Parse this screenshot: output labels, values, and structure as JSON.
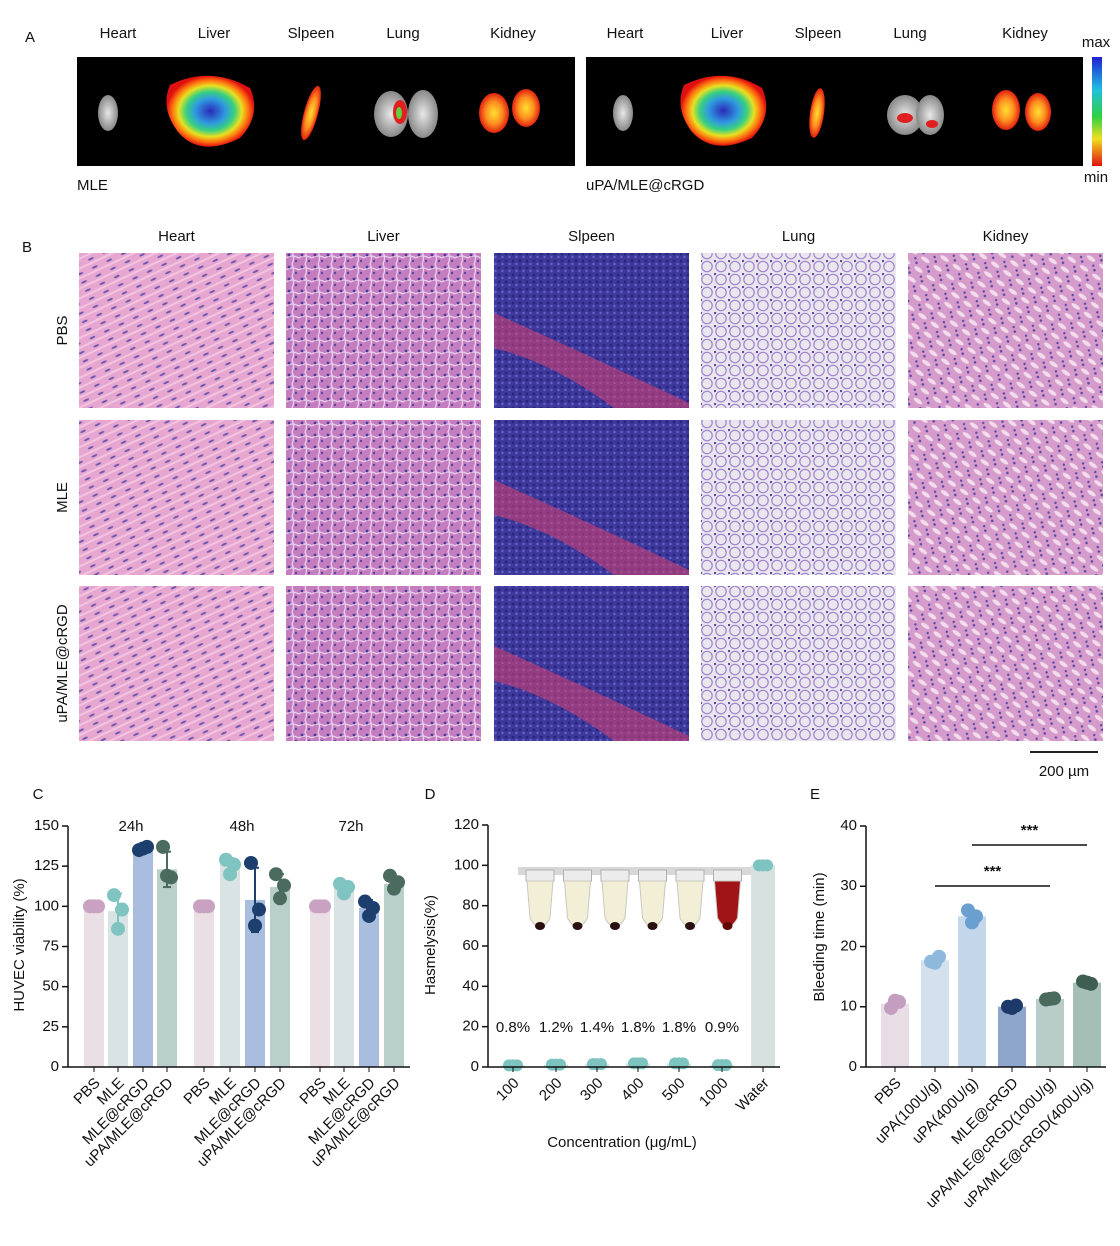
{
  "panel_a": {
    "label": "A",
    "organs": [
      "Heart",
      "Liver",
      "Slpeen",
      "Lung",
      "Kidney"
    ],
    "groups": [
      "MLE",
      "uPA/MLE@cRGD"
    ],
    "scale_max": "max",
    "scale_min": "min"
  },
  "panel_b": {
    "label": "B",
    "columns": [
      "Heart",
      "Liver",
      "Slpeen",
      "Lung",
      "Kidney"
    ],
    "rows": [
      "PBS",
      "MLE",
      "uPA/MLE@cRGD"
    ],
    "scale_bar": "200 µm"
  },
  "chart_data": [
    {
      "type": "grouped_bar",
      "label": "C",
      "ylabel": "HUVEC  viability (%)",
      "categories": [
        "24h",
        "48h",
        "72h"
      ],
      "series": [
        {
          "name": "PBS",
          "color": "#eadfe5",
          "point_color": "#c9a2c2",
          "values": [
            100,
            100,
            100
          ],
          "errors": [
            0,
            0,
            0
          ],
          "points": [
            [
              100,
              100,
              100
            ],
            [
              100,
              100,
              100
            ],
            [
              100,
              100,
              100
            ]
          ]
        },
        {
          "name": "MLE",
          "color": "#d9e3e3",
          "point_color": "#7fc4c0",
          "values": [
            97,
            126,
            112
          ],
          "errors": [
            11,
            4,
            3
          ],
          "points": [
            [
              107,
              98,
              86
            ],
            [
              129,
              126,
              120
            ],
            [
              114,
              112,
              108
            ]
          ]
        },
        {
          "name": "MLE@cRGD",
          "color": "#a9bedf",
          "point_color": "#1d3f6e",
          "values": [
            136,
            104,
            99
          ],
          "errors": [
            1,
            20,
            5
          ],
          "points": [
            [
              135,
              137,
              136
            ],
            [
              127,
              98,
              88
            ],
            [
              103,
              99,
              94
            ]
          ]
        },
        {
          "name": "uPA/MLE@cRGD",
          "color": "#b9cfca",
          "point_color": "#4a6b5e",
          "values": [
            123,
            112,
            114
          ],
          "errors": [
            11,
            8,
            4
          ],
          "points": [
            [
              137,
              118,
              119
            ],
            [
              120,
              113,
              105
            ],
            [
              119,
              115,
              111
            ]
          ]
        }
      ],
      "ylim": [
        0,
        150
      ],
      "yticks": [
        0,
        25,
        50,
        75,
        100,
        125,
        150
      ]
    },
    {
      "type": "bar",
      "label": "D",
      "ylabel": "Hasmelysis(%)",
      "xlabel": "Concentration (μg/mL)",
      "categories": [
        "100",
        "200",
        "300",
        "400",
        "500",
        "1000",
        "Water"
      ],
      "values": [
        0.8,
        1.2,
        1.4,
        1.8,
        1.8,
        0.9,
        100
      ],
      "value_labels": [
        "0.8%",
        "1.2%",
        "1.4%",
        "1.8%",
        "1.8%",
        "0.9%",
        null
      ],
      "points": [
        [
          0.8,
          0.8,
          0.8
        ],
        [
          1.2,
          1.2,
          1.2
        ],
        [
          1.4,
          1.4,
          1.4
        ],
        [
          1.8,
          1.8,
          1.8
        ],
        [
          1.8,
          1.8,
          1.8
        ],
        [
          0.9,
          0.9,
          0.9
        ],
        [
          100,
          100,
          100
        ]
      ],
      "color": "#d6e1e0",
      "point_color": "#7dc3bf",
      "ylim": [
        0,
        120
      ],
      "yticks": [
        0,
        20,
        40,
        60,
        80,
        100,
        120
      ]
    },
    {
      "type": "bar",
      "label": "E",
      "ylabel": "Bleeding time (min)",
      "categories": [
        "PBS",
        "uPA(100U/g)",
        "uPA(400U/g)",
        "MLE@cRGD",
        "uPA/MLE@cRGD(100U/g)",
        "uPA/MLE@cRGD(400U/g)"
      ],
      "values": [
        10.5,
        17.7,
        25.0,
        10.0,
        11.3,
        14.0
      ],
      "points": [
        [
          9.8,
          10.8,
          11
        ],
        [
          17.5,
          18.3,
          17.3
        ],
        [
          26,
          25,
          24
        ],
        [
          10,
          10.2,
          9.8
        ],
        [
          11.2,
          11.4,
          11.3
        ],
        [
          14.2,
          13.8,
          14
        ]
      ],
      "colors": [
        "#e8dde5",
        "#d3e1ef",
        "#c3d6ea",
        "#8ea6cb",
        "#b9cdc8",
        "#a5beb6"
      ],
      "point_colors": [
        "#c49ec0",
        "#8fb8dd",
        "#6b9fcf",
        "#1d3a6b",
        "#4a6a5e",
        "#3f5e52"
      ],
      "comparisons": [
        {
          "label": "***",
          "between": [
            1,
            4
          ]
        },
        {
          "label": "***",
          "between": [
            2,
            5
          ]
        }
      ],
      "ylim": [
        0,
        40
      ],
      "yticks": [
        0,
        10,
        20,
        30,
        40
      ]
    }
  ]
}
